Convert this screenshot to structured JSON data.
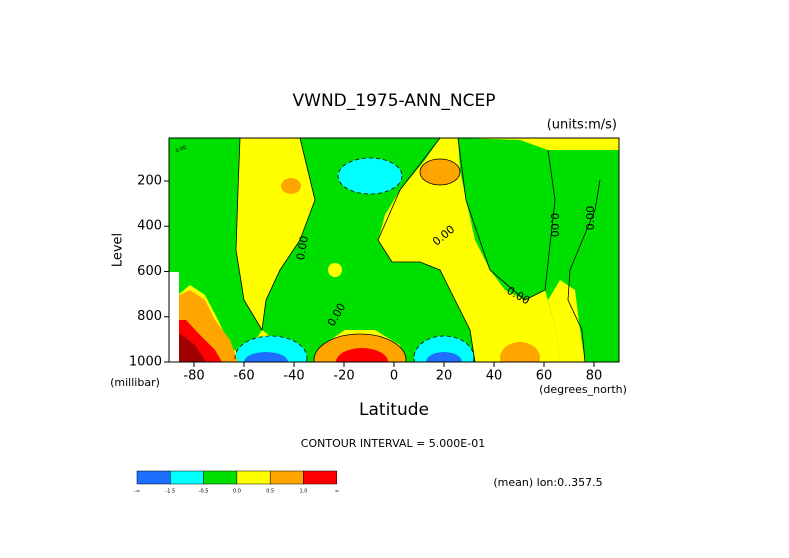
{
  "chart_data": {
    "type": "contour",
    "title": "VWND_1975-ANN_NCEP",
    "subtitle": "(units:m/s)",
    "y_label": "Level",
    "y_units": "(millibar)",
    "x_label": "Latitude",
    "x_units": "(degrees_north)",
    "contour_interval": "CONTOUR INTERVAL = 5.000E-01",
    "footnote": "(mean) lon:0..357.5",
    "contour_label": "0.00",
    "xlim": [
      -90,
      90
    ],
    "xticks": [
      -80,
      -60,
      -40,
      -20,
      0,
      20,
      40,
      60,
      80
    ],
    "ylim": [
      1000,
      10
    ],
    "yticks": [
      200,
      400,
      600,
      800,
      1000
    ],
    "colorbar": {
      "colors": [
        "#1e6eff",
        "#00ffff",
        "#00e000",
        "#ffff00",
        "#ffa500",
        "#ff0000"
      ],
      "labels": [
        "-∞",
        "-1.5",
        "-0.5",
        "0.0",
        "0.5",
        "1.0",
        "∞"
      ]
    }
  }
}
